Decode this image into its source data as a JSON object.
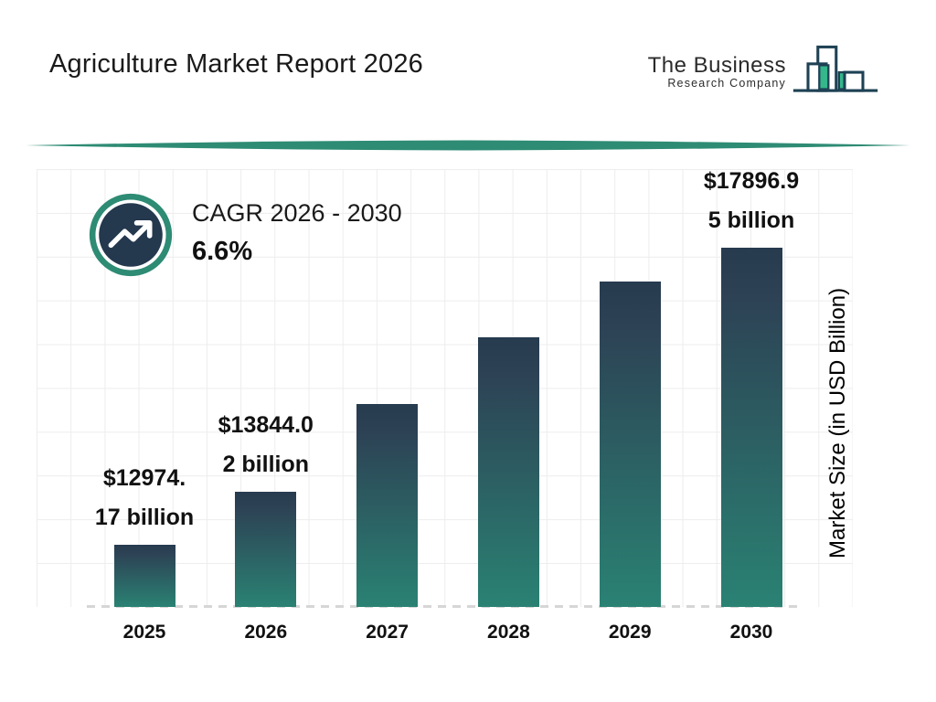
{
  "header": {
    "title": "Agriculture Market Report 2026",
    "logo": {
      "line1": "The Business",
      "line2": "Research Company"
    }
  },
  "cagr": {
    "label": "CAGR 2026 - 2030",
    "value": "6.6%"
  },
  "chart_data": {
    "type": "bar",
    "title": "Agriculture Market Report 2026",
    "xlabel": "",
    "ylabel": "Market Size (in USD Billion)",
    "categories": [
      "2025",
      "2026",
      "2027",
      "2028",
      "2029",
      "2030"
    ],
    "values": [
      12974.17,
      13844.02,
      15310,
      16410,
      17340,
      17896.95
    ],
    "values_estimated_from_bar_heights": [
      false,
      false,
      true,
      true,
      true,
      false
    ],
    "bar_labels": [
      [
        "$12974.",
        "17 billion"
      ],
      [
        "$13844.0",
        "2 billion"
      ],
      null,
      null,
      null,
      [
        "$17896.9",
        "5 billion"
      ]
    ],
    "ylim": [
      11940,
      17900
    ],
    "grid": true,
    "legend_position": "none",
    "colors": {
      "bar_gradient_top": "#273b4f",
      "bar_gradient_bottom": "#2a8273",
      "accent_green": "#2e8b74",
      "dark_navy": "#24384e",
      "logo_green": "#35b78b",
      "logo_outline": "#1e4154"
    }
  }
}
